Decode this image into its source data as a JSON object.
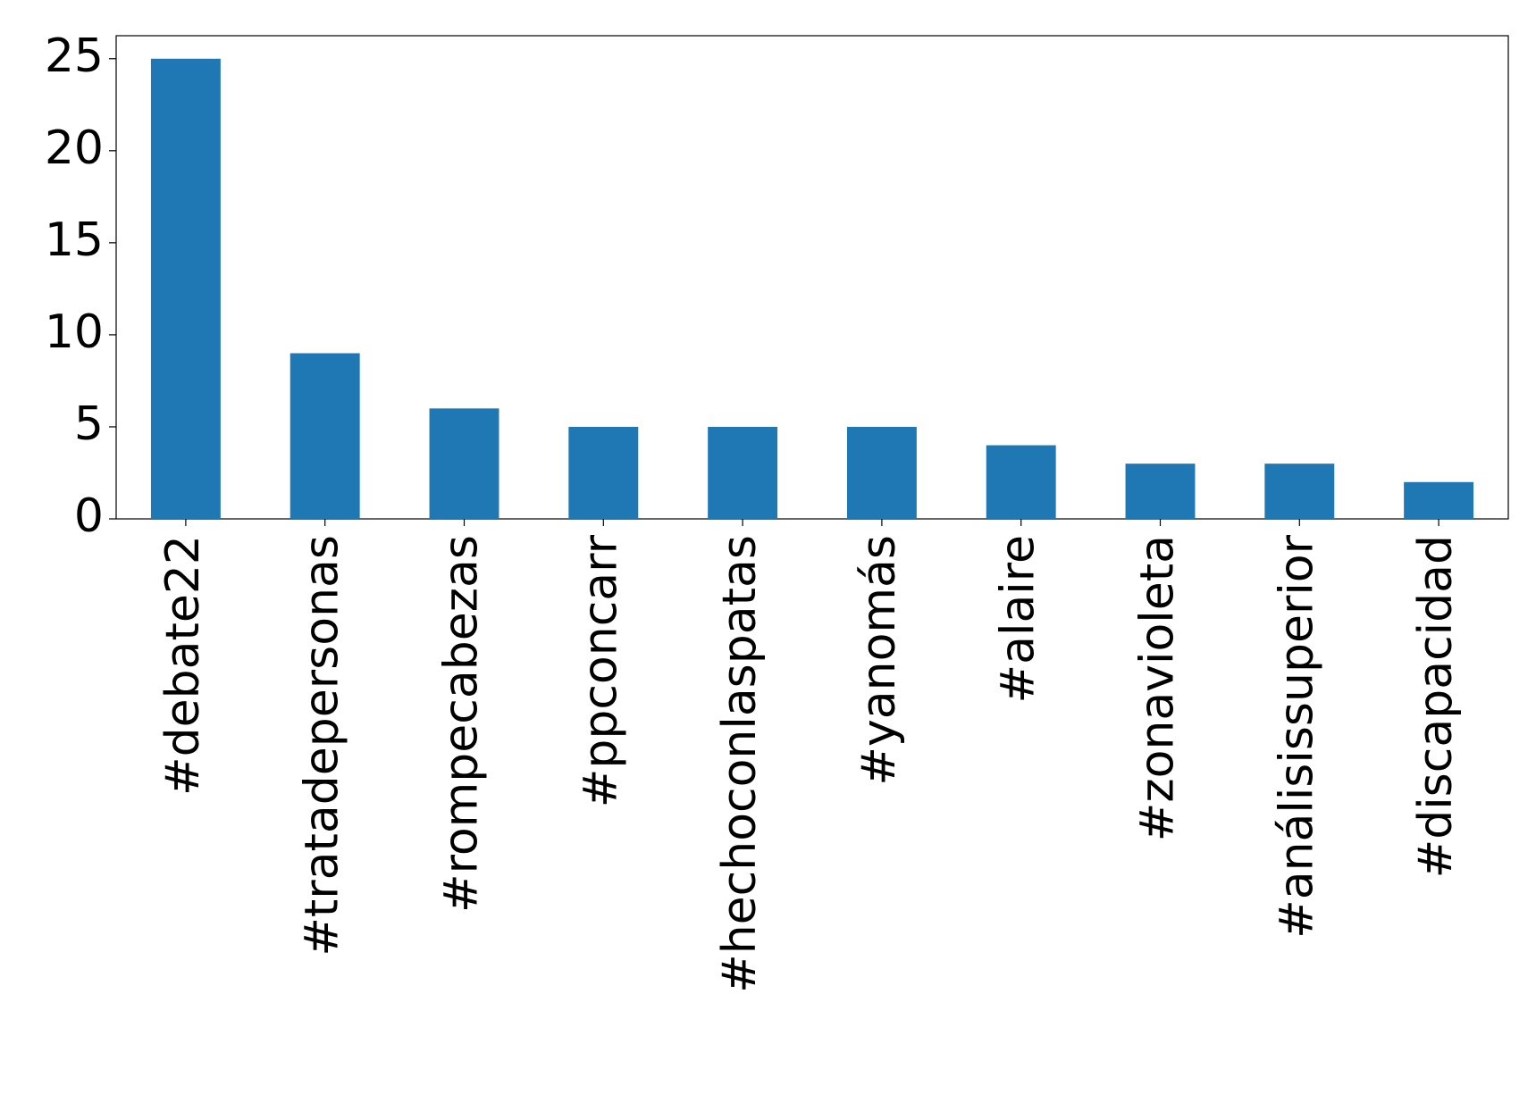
{
  "chart_data": {
    "type": "bar",
    "categories": [
      "#debate22",
      "#tratadepersonas",
      "#rompecabezas",
      "#ppconcarr",
      "#hechoconlaspatas",
      "#yanomás",
      "#alaire",
      "#zonavioleta",
      "#análisissuperior",
      "#discapacidad"
    ],
    "values": [
      25,
      9,
      6,
      5,
      5,
      5,
      4,
      3,
      3,
      2
    ],
    "color": "#1f77b4",
    "ylim": [
      0,
      26.25
    ],
    "yticks": [
      0,
      5,
      10,
      15,
      20,
      25
    ],
    "grid": false
  }
}
